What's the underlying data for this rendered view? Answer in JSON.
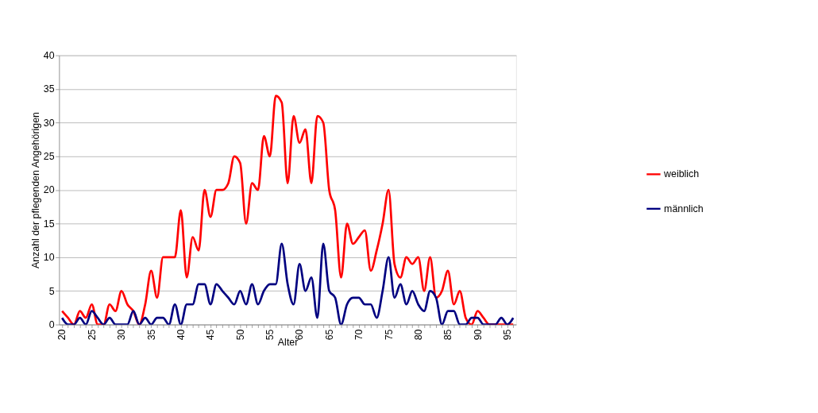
{
  "chart_data": {
    "type": "line",
    "xlabel": "Alter",
    "ylabel": "Anzahl der pflegenden Angehörigen",
    "categories": [
      "20",
      null,
      null,
      null,
      null,
      "25",
      null,
      null,
      null,
      null,
      "30",
      null,
      null,
      null,
      null,
      "35",
      null,
      null,
      null,
      null,
      "40",
      null,
      null,
      null,
      null,
      "45",
      null,
      null,
      null,
      null,
      "50",
      null,
      null,
      null,
      null,
      "55",
      null,
      null,
      null,
      null,
      "60",
      null,
      null,
      null,
      null,
      "65",
      null,
      null,
      null,
      null,
      "70",
      null,
      null,
      null,
      null,
      "75",
      null,
      null,
      null,
      null,
      "80",
      null,
      null,
      null,
      null,
      "85",
      null,
      null,
      null,
      null,
      "90",
      null,
      null,
      null,
      null,
      "95",
      null
    ],
    "series": [
      {
        "name": "weiblich",
        "color": "#ff0000",
        "values": [
          2,
          1,
          0,
          2,
          1,
          3,
          0,
          0,
          3,
          2,
          5,
          3,
          2,
          0,
          3,
          8,
          4,
          10,
          10,
          10,
          17,
          7,
          13,
          11,
          20,
          16,
          20,
          20,
          21,
          25,
          24,
          15,
          21,
          20,
          28,
          25,
          34,
          33,
          21,
          31,
          27,
          29,
          21,
          31,
          30,
          20,
          17,
          7,
          15,
          12,
          13,
          14,
          8,
          11,
          15,
          20,
          9,
          7,
          10,
          9,
          10,
          5,
          10,
          4,
          5,
          8,
          3,
          5,
          1,
          0,
          2,
          1,
          0,
          0,
          0,
          0,
          0
        ]
      },
      {
        "name": "männlich",
        "color": "#000080",
        "values": [
          1,
          0,
          0,
          1,
          0,
          2,
          1,
          0,
          1,
          0,
          0,
          0,
          2,
          0,
          1,
          0,
          1,
          1,
          0,
          3,
          0,
          3,
          3,
          6,
          6,
          3,
          6,
          5,
          4,
          3,
          5,
          3,
          6,
          3,
          5,
          6,
          6,
          12,
          6,
          3,
          9,
          5,
          7,
          1,
          12,
          5,
          4,
          0,
          3,
          4,
          4,
          3,
          3,
          1,
          5,
          10,
          4,
          6,
          3,
          5,
          3,
          2,
          5,
          4,
          0,
          2,
          2,
          0,
          0,
          1,
          1,
          0,
          0,
          0,
          1,
          0,
          1
        ]
      }
    ],
    "ylim": [
      0,
      40
    ],
    "yticks": [
      0,
      5,
      10,
      15,
      20,
      25,
      30,
      35,
      40
    ],
    "grid": "y",
    "legend": "right",
    "marker": "none",
    "line_style": "solid"
  }
}
